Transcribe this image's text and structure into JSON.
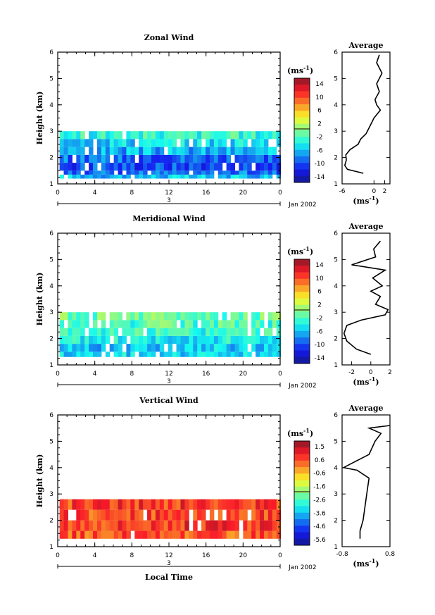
{
  "chart_data": [
    {
      "type": "heatmap",
      "title": "Zonal Wind",
      "xlabel": "",
      "ylabel": "Height (km)",
      "x_ticks": [
        "0",
        "4",
        "8",
        "12",
        "16",
        "20",
        "0"
      ],
      "y_ticks": [
        "1",
        "2",
        "3",
        "4",
        "5",
        "6"
      ],
      "xlim": [
        0,
        24
      ],
      "ylim": [
        1,
        6
      ],
      "date_day": "3",
      "date_month": "Jan 2002",
      "colorbar": {
        "unit": "(ms",
        "unit_sup": "-1",
        "unit_close": ")",
        "ticks": [
          "14",
          "10",
          "6",
          "2",
          "-2",
          "-6",
          "-10",
          "-14"
        ],
        "min": -16,
        "max": 16
      },
      "field_rows": [
        {
          "z_low": 1.2,
          "z_high": 1.35,
          "value": -6
        },
        {
          "z_low": 1.35,
          "z_high": 1.5,
          "value": -9
        },
        {
          "z_low": 1.5,
          "z_high": 1.8,
          "value": -10
        },
        {
          "z_low": 1.8,
          "z_high": 2.1,
          "value": -9
        },
        {
          "z_low": 2.1,
          "z_high": 2.4,
          "value": -7
        },
        {
          "z_low": 2.4,
          "z_high": 2.7,
          "value": -5
        },
        {
          "z_low": 2.7,
          "z_high": 3.0,
          "value": -3
        }
      ],
      "avg_profile": {
        "title": "Average",
        "xlabel": "(ms",
        "xlabel_sup": "-1",
        "xlabel_close": ")",
        "x_ticks": [
          "-6",
          "0",
          "2"
        ],
        "xlim": [
          -6,
          3
        ],
        "ylim": [
          1,
          6
        ],
        "points": [
          [
            -2,
            1.4
          ],
          [
            -5,
            1.55
          ],
          [
            -5.5,
            1.7
          ],
          [
            -5.2,
            1.9
          ],
          [
            -5.3,
            2.1
          ],
          [
            -4.5,
            2.3
          ],
          [
            -3,
            2.5
          ],
          [
            -2.5,
            2.7
          ],
          [
            -1.5,
            2.9
          ],
          [
            -1,
            3.1
          ],
          [
            -0.5,
            3.3
          ],
          [
            0,
            3.5
          ],
          [
            1.2,
            3.8
          ],
          [
            0.5,
            4.0
          ],
          [
            0.2,
            4.2
          ],
          [
            1,
            4.5
          ],
          [
            0.5,
            4.8
          ],
          [
            1.5,
            5.2
          ],
          [
            0.5,
            5.6
          ],
          [
            1,
            5.9
          ]
        ]
      }
    },
    {
      "type": "heatmap",
      "title": "Meridional Wind",
      "xlabel": "",
      "ylabel": "Height (km)",
      "x_ticks": [
        "0",
        "4",
        "8",
        "12",
        "16",
        "20",
        "0"
      ],
      "y_ticks": [
        "1",
        "2",
        "3",
        "4",
        "5",
        "6"
      ],
      "xlim": [
        0,
        24
      ],
      "ylim": [
        1,
        6
      ],
      "date_day": "3",
      "date_month": "Jan 2002",
      "colorbar": {
        "unit": "(ms",
        "unit_sup": "-1",
        "unit_close": ")",
        "ticks": [
          "14",
          "10",
          "6",
          "2",
          "-2",
          "-6",
          "-10",
          "-14"
        ],
        "min": -16,
        "max": 16
      },
      "field_rows": [
        {
          "z_low": 1.3,
          "z_high": 1.5,
          "value": -5
        },
        {
          "z_low": 1.5,
          "z_high": 1.8,
          "value": -6
        },
        {
          "z_low": 1.8,
          "z_high": 2.1,
          "value": -4
        },
        {
          "z_low": 2.1,
          "z_high": 2.4,
          "value": -3
        },
        {
          "z_low": 2.4,
          "z_high": 2.7,
          "value": -2
        },
        {
          "z_low": 2.7,
          "z_high": 3.0,
          "value": -1
        }
      ],
      "avg_profile": {
        "title": "Average",
        "xlabel": "(ms",
        "xlabel_sup": "-1",
        "xlabel_close": ")",
        "x_ticks": [
          "-2",
          "0",
          "2"
        ],
        "xlim": [
          -3,
          2
        ],
        "ylim": [
          1,
          6
        ],
        "points": [
          [
            0,
            1.4
          ],
          [
            -1.5,
            1.6
          ],
          [
            -2.5,
            1.9
          ],
          [
            -2.8,
            2.2
          ],
          [
            -2.5,
            2.5
          ],
          [
            -1,
            2.7
          ],
          [
            1.5,
            2.9
          ],
          [
            1.8,
            3.1
          ],
          [
            0.5,
            3.3
          ],
          [
            1,
            3.6
          ],
          [
            0,
            3.8
          ],
          [
            1.2,
            4.0
          ],
          [
            0.2,
            4.3
          ],
          [
            1.5,
            4.6
          ],
          [
            -2,
            4.8
          ],
          [
            0.5,
            5.1
          ],
          [
            0.3,
            5.4
          ],
          [
            1,
            5.7
          ]
        ]
      }
    },
    {
      "type": "heatmap",
      "title": "Vertical Wind",
      "xlabel": "Local Time",
      "ylabel": "Height (km)",
      "x_ticks": [
        "0",
        "4",
        "8",
        "12",
        "16",
        "20",
        "0"
      ],
      "y_ticks": [
        "1",
        "2",
        "3",
        "4",
        "5",
        "6"
      ],
      "xlim": [
        0,
        24
      ],
      "ylim": [
        1,
        6
      ],
      "date_day": "3",
      "date_month": "Jan 2002",
      "colorbar": {
        "unit": "(ms",
        "unit_sup": "-1",
        "unit_close": ")",
        "ticks": [
          "1.5",
          "0.6",
          "-0.6",
          "-1.6",
          "-2.6",
          "-3.6",
          "-4.6",
          "-5.6"
        ],
        "min": -6,
        "max": 2
      },
      "field_rows": [
        {
          "z_low": 1.3,
          "z_high": 1.6,
          "value": 0.5
        },
        {
          "z_low": 1.6,
          "z_high": 2.0,
          "value": 0.8
        },
        {
          "z_low": 2.0,
          "z_high": 2.4,
          "value": 0.6
        },
        {
          "z_low": 2.4,
          "z_high": 2.8,
          "value": 0.7
        }
      ],
      "avg_profile": {
        "title": "Average",
        "xlabel": "(ms",
        "xlabel_sup": "-1",
        "xlabel_close": ")",
        "x_ticks": [
          "-0.8",
          "0.8"
        ],
        "xlim": [
          -0.8,
          0.8
        ],
        "ylim": [
          1,
          6
        ],
        "points": [
          [
            -0.2,
            1.3
          ],
          [
            -0.2,
            1.6
          ],
          [
            -0.1,
            2.0
          ],
          [
            -0.05,
            2.4
          ],
          [
            0,
            2.8
          ],
          [
            0.05,
            3.2
          ],
          [
            0.1,
            3.6
          ],
          [
            -0.3,
            3.9
          ],
          [
            -0.75,
            4.0
          ],
          [
            -0.5,
            4.15
          ],
          [
            0.1,
            4.5
          ],
          [
            0.3,
            5.0
          ],
          [
            0.5,
            5.3
          ],
          [
            0.1,
            5.5
          ],
          [
            0.8,
            5.6
          ]
        ]
      }
    }
  ]
}
